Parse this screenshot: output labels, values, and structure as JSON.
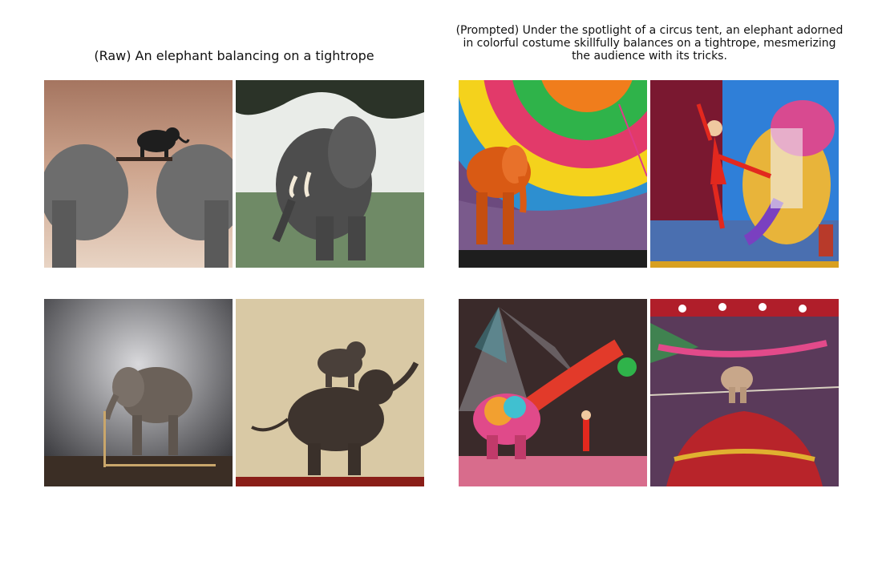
{
  "panels": {
    "raw_title": "(Raw) An elephant balancing on a tightrope",
    "prompted_title": "(Prompted) Under the spotlight of a circus tent, an elephant adorned in colorful costume skillfully balances on a tightrope, mesmerizing the audience with its tricks."
  },
  "colors": {
    "background": "#ffffff",
    "raw_tones": [
      "#b98f78",
      "#7d8a7a",
      "#9a9a9a",
      "#c8b28a"
    ],
    "prompted_tones": [
      "#3a9ad0",
      "#e0322a",
      "#6b3a8a",
      "#d4a020"
    ]
  }
}
